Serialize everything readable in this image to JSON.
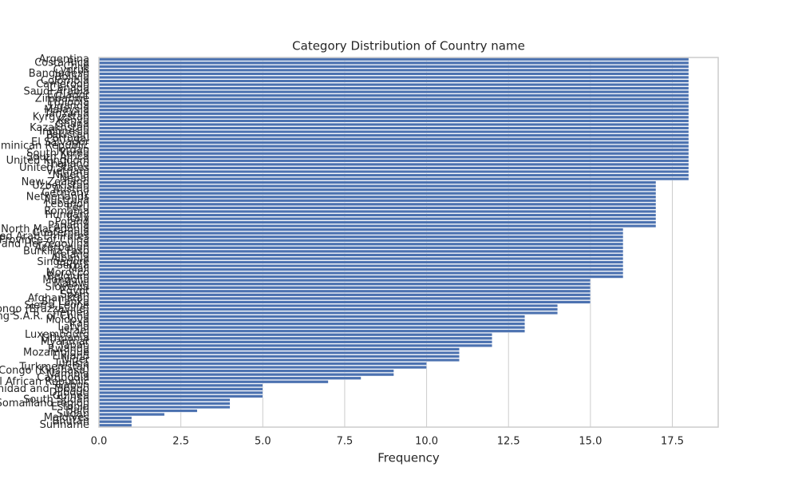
{
  "chart_data": {
    "type": "barh",
    "title": "Category Distribution of Country name",
    "x_label": "Frequency",
    "color": "#4c72b0",
    "grid": true,
    "categories": [
      "Argentina",
      "Costa Rica",
      "Chile",
      "Cyprus",
      "Bangladesh",
      "Bolivia",
      "Colombia",
      "Cameroon",
      "Canada",
      "Saudi Arabia",
      "Ecuador",
      "Zimbabwe",
      "Ethiopia",
      "Uganda",
      "Malaysia",
      "Tanzania",
      "Kyrgyzstan",
      "Kenya",
      "Ghana",
      "Kazakhstan",
      "Indonesia",
      "Pakistan",
      "Portugal",
      "El Salvador",
      "Dominican Republic",
      "Jordan",
      "South Korea",
      "South Africa",
      "United Kingdom",
      "Thailand",
      "United States",
      "Vietnam",
      "Nigeria",
      "Nepal",
      "New Zealand",
      "Uzbekistan",
      "Austria",
      "Germany",
      "Netherlands",
      "Australia",
      "Lebanon",
      "Peru",
      "Romania",
      "Hungary",
      "Italy",
      "Poland",
      "Panama",
      "North Macedonia",
      "Guatemala",
      "United Arab Emirates",
      "Taiwan Province of China",
      "Bosnia and Herzegovina",
      "Azerbaijan",
      "Burkina Faso",
      "Iceland",
      "Albania",
      "Singapore",
      "Serbia",
      "Mali",
      "Morocco",
      "Belgium",
      "Mongolia",
      "Malawi",
      "Slovenia",
      "Egypt",
      "Spain",
      "Afghanistan",
      "Sri Lanka",
      "Sierra Leone",
      "Congo (Brazzaville)",
      "Yemen",
      "Hong Kong S.A.R. of China",
      "Moldova",
      "Iran",
      "Latvia",
      "Israel",
      "Luxembourg",
      "Lithuania",
      "Myanmar",
      "Japan",
      "Rwanda",
      "Mozambique",
      "Finland",
      "Niger",
      "Tunisia",
      "Turkmenistan",
      "Congo (Kinshasa)",
      "Namibia",
      "Cambodia",
      "Central African Republic",
      "Gabon",
      "Trinidad and Tobago",
      "Djibouti",
      "Guinea",
      "South Sudan",
      "Somaliland region",
      "Estonia",
      "Haiti",
      "Sudan",
      "Maldives",
      "Bhutan",
      "Suriname"
    ],
    "values": [
      18,
      18,
      18,
      18,
      18,
      18,
      18,
      18,
      18,
      18,
      18,
      18,
      18,
      18,
      18,
      18,
      18,
      18,
      18,
      18,
      18,
      18,
      18,
      18,
      18,
      18,
      18,
      18,
      18,
      18,
      18,
      18,
      18,
      18,
      17,
      17,
      17,
      17,
      17,
      17,
      17,
      17,
      17,
      17,
      17,
      17,
      17,
      16,
      16,
      16,
      16,
      16,
      16,
      16,
      16,
      16,
      16,
      16,
      16,
      16,
      16,
      15,
      15,
      15,
      15,
      15,
      15,
      15,
      14,
      14,
      14,
      13,
      13,
      13,
      13,
      13,
      12,
      12,
      12,
      12,
      11,
      11,
      11,
      11,
      10,
      10,
      9,
      9,
      8,
      7,
      5,
      5,
      5,
      5,
      4,
      4,
      4,
      3,
      2,
      1,
      1,
      1
    ],
    "xlim": [
      0,
      18.9
    ],
    "xticks": [
      {
        "value": 0,
        "label": "0.0"
      },
      2.5,
      {
        "value": 5,
        "label": "5.0"
      },
      7.5,
      {
        "value": 10,
        "label": "10.0"
      },
      12.5,
      {
        "value": 15,
        "label": "15.0"
      },
      17.5
    ]
  }
}
